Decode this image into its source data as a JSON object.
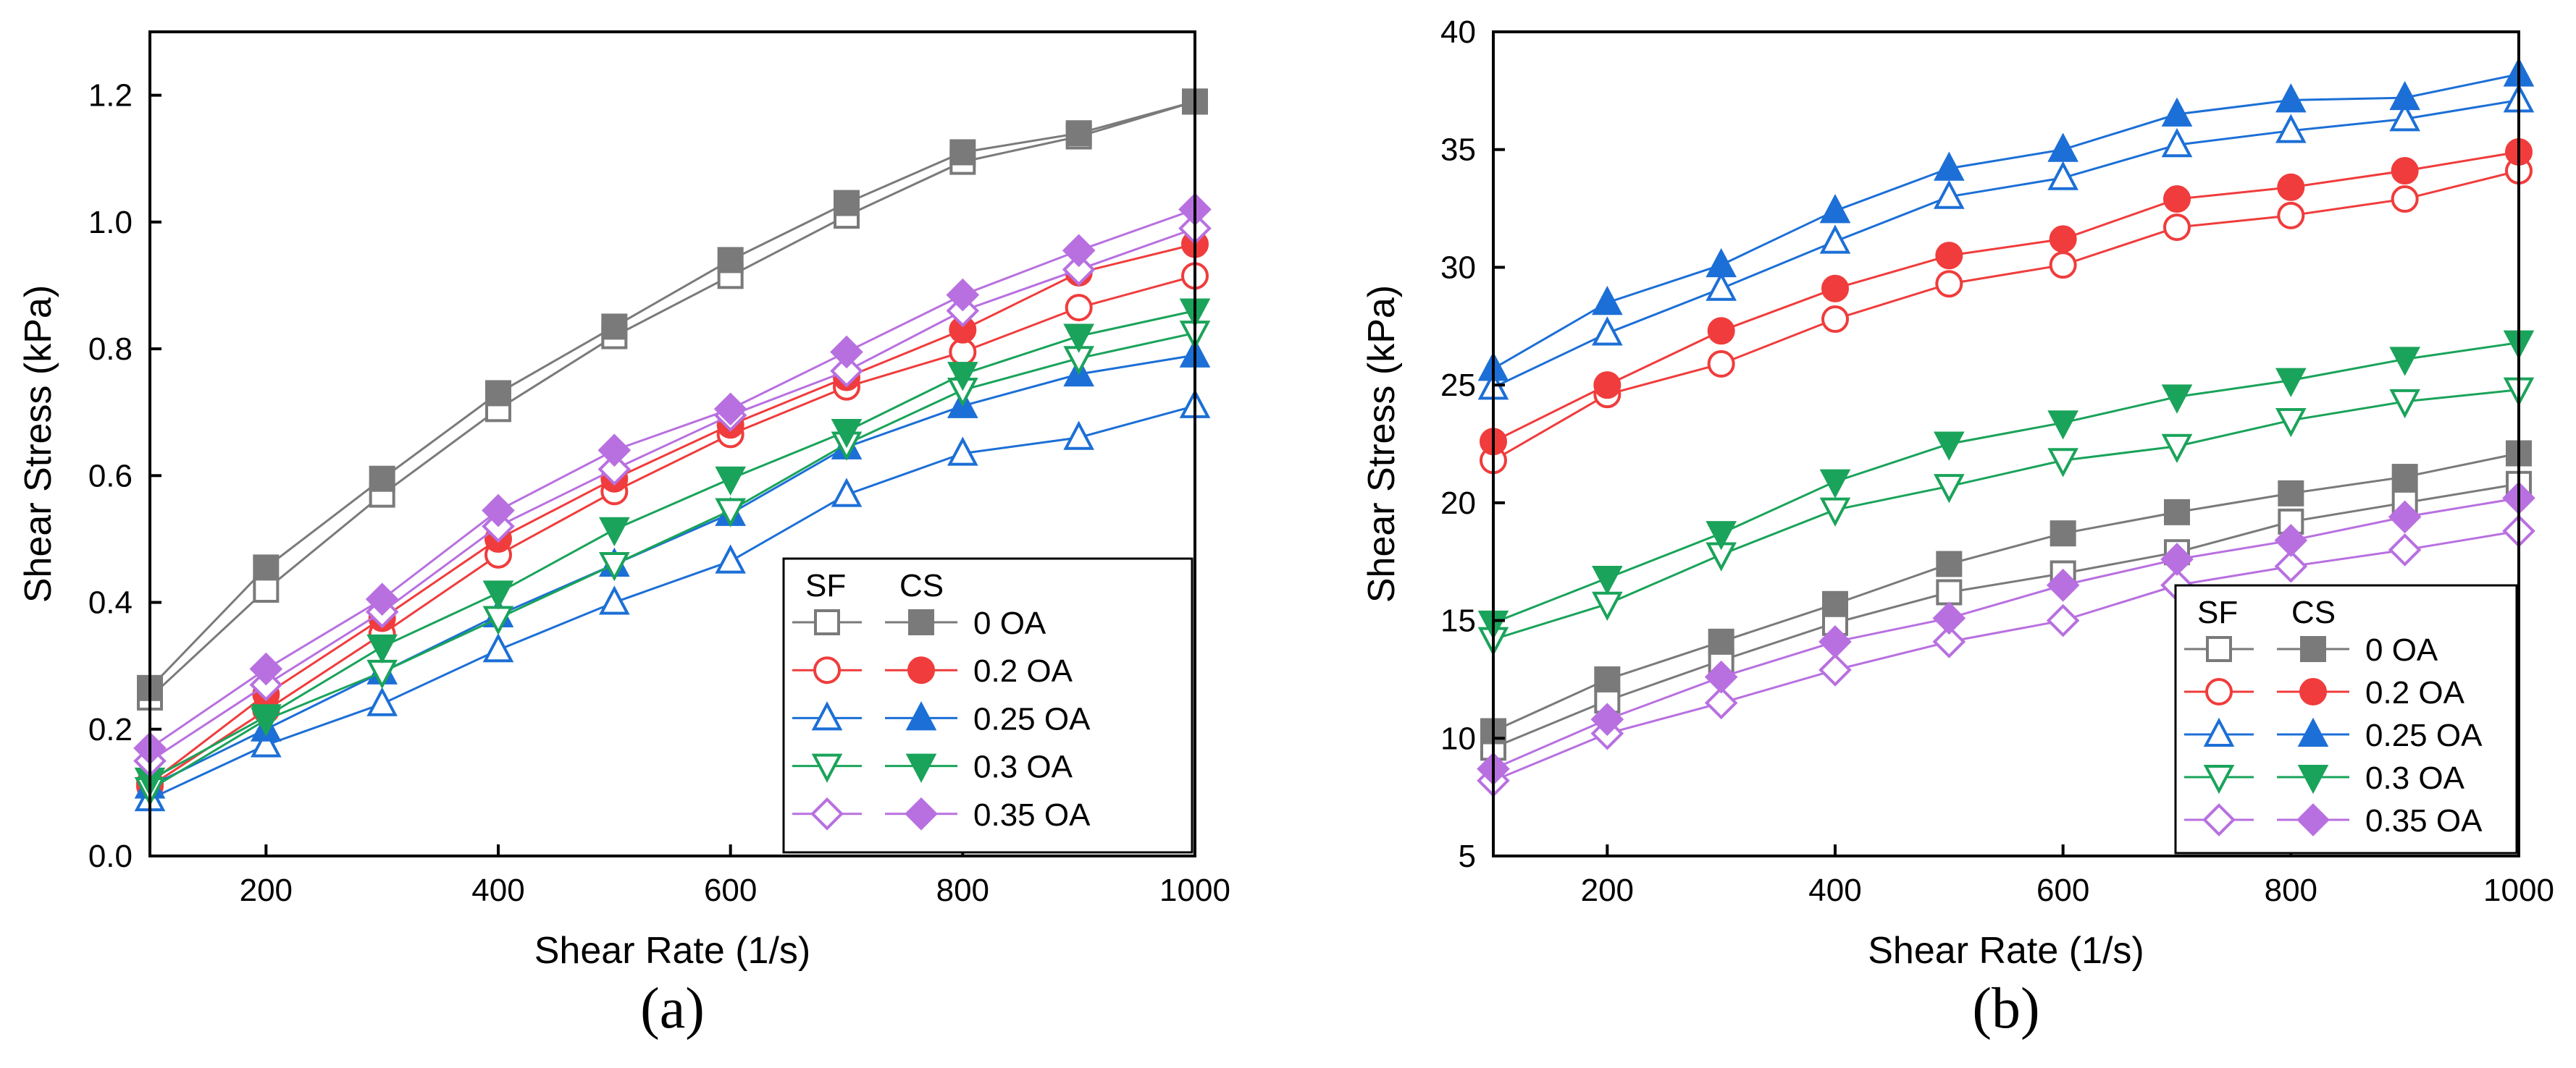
{
  "chart_data": [
    {
      "type": "line",
      "panel_label": "(a)",
      "xlabel": "Shear Rate (1/s)",
      "ylabel": "Shear Stress (kPa)",
      "xlim": [
        100,
        1000
      ],
      "ylim": [
        0.0,
        1.3
      ],
      "xticks": [
        200,
        400,
        600,
        800,
        1000
      ],
      "yticks": [
        0.0,
        0.2,
        0.4,
        0.6,
        0.8,
        1.0,
        1.2
      ],
      "ytick_labels": [
        "0.0",
        "0.2",
        "0.4",
        "0.6",
        "0.8",
        "1.0",
        "1.2"
      ],
      "grid": false,
      "legend_position": "bottom-right",
      "legend_headers": [
        "SF",
        "CS"
      ],
      "x": [
        100,
        200,
        300,
        400,
        500,
        600,
        700,
        800,
        900,
        1000
      ],
      "series": [
        {
          "name": "0 OA",
          "color": "#7a7a7a",
          "marker": "square",
          "sf": [
            0.25,
            0.42,
            0.57,
            0.705,
            0.82,
            0.915,
            1.01,
            1.095,
            1.135,
            1.19
          ],
          "cs": [
            0.265,
            0.455,
            0.595,
            0.73,
            0.835,
            0.94,
            1.03,
            1.11,
            1.14,
            1.19
          ]
        },
        {
          "name": "0.2 OA",
          "color": "#f03c3c",
          "marker": "circle",
          "sf": [
            0.11,
            0.23,
            0.35,
            0.475,
            0.575,
            0.665,
            0.74,
            0.795,
            0.865,
            0.915
          ],
          "cs": [
            0.115,
            0.255,
            0.375,
            0.5,
            0.595,
            0.68,
            0.755,
            0.83,
            0.92,
            0.965
          ]
        },
        {
          "name": "0.25 OA",
          "color": "#1c6fd6",
          "marker": "triangle-up",
          "sf": [
            0.09,
            0.175,
            0.24,
            0.325,
            0.4,
            0.465,
            0.57,
            0.635,
            0.66,
            0.71
          ],
          "cs": [
            0.11,
            0.2,
            0.29,
            0.38,
            0.46,
            0.54,
            0.645,
            0.71,
            0.76,
            0.79
          ]
        },
        {
          "name": "0.3 OA",
          "color": "#1aa35a",
          "marker": "triangle-down",
          "sf": [
            0.105,
            0.215,
            0.29,
            0.375,
            0.46,
            0.545,
            0.65,
            0.735,
            0.785,
            0.825
          ],
          "cs": [
            0.12,
            0.22,
            0.33,
            0.415,
            0.515,
            0.595,
            0.67,
            0.76,
            0.82,
            0.86
          ]
        },
        {
          "name": "0.35 OA",
          "color": "#b870e0",
          "marker": "diamond",
          "sf": [
            0.15,
            0.27,
            0.385,
            0.52,
            0.61,
            0.695,
            0.765,
            0.86,
            0.925,
            0.99
          ],
          "cs": [
            0.17,
            0.295,
            0.405,
            0.545,
            0.64,
            0.705,
            0.795,
            0.885,
            0.955,
            1.02
          ]
        }
      ]
    },
    {
      "type": "line",
      "panel_label": "(b)",
      "xlabel": "Shear Rate (1/s)",
      "ylabel": "Shear Stress (kPa)",
      "xlim": [
        100,
        1000
      ],
      "ylim": [
        5,
        40
      ],
      "xticks": [
        200,
        400,
        600,
        800,
        1000
      ],
      "yticks": [
        5,
        10,
        15,
        20,
        25,
        30,
        35,
        40
      ],
      "ytick_labels": [
        "5",
        "10",
        "15",
        "20",
        "25",
        "30",
        "35",
        "40"
      ],
      "grid": false,
      "legend_position": "bottom-right",
      "legend_headers": [
        "SF",
        "CS"
      ],
      "x": [
        100,
        200,
        300,
        400,
        500,
        600,
        700,
        800,
        900,
        1000
      ],
      "series": [
        {
          "name": "0 OA",
          "color": "#7a7a7a",
          "marker": "square",
          "sf": [
            9.6,
            11.6,
            13.3,
            14.9,
            16.2,
            17.0,
            17.9,
            19.2,
            20.0,
            20.8
          ],
          "cs": [
            10.3,
            12.5,
            14.1,
            15.7,
            17.4,
            18.7,
            19.6,
            20.4,
            21.1,
            22.1
          ]
        },
        {
          "name": "0.2 OA",
          "color": "#f03c3c",
          "marker": "circle",
          "sf": [
            21.8,
            24.6,
            25.9,
            27.8,
            29.3,
            30.1,
            31.7,
            32.2,
            32.9,
            34.1
          ],
          "cs": [
            22.6,
            25.0,
            27.3,
            29.1,
            30.5,
            31.2,
            32.9,
            33.4,
            34.1,
            34.9
          ]
        },
        {
          "name": "0.25 OA",
          "color": "#1c6fd6",
          "marker": "triangle-up",
          "sf": [
            24.9,
            27.2,
            29.1,
            31.1,
            33.0,
            33.8,
            35.2,
            35.8,
            36.3,
            37.1
          ],
          "cs": [
            25.7,
            28.5,
            30.1,
            32.4,
            34.2,
            35.0,
            36.5,
            37.1,
            37.2,
            38.2
          ]
        },
        {
          "name": "0.3 OA",
          "color": "#1aa35a",
          "marker": "triangle-down",
          "sf": [
            14.2,
            15.7,
            17.8,
            19.7,
            20.7,
            21.8,
            22.4,
            23.5,
            24.3,
            24.8
          ],
          "cs": [
            14.9,
            16.8,
            18.7,
            20.9,
            22.5,
            23.4,
            24.5,
            25.2,
            26.1,
            26.8
          ]
        },
        {
          "name": "0.35 OA",
          "color": "#b870e0",
          "marker": "diamond",
          "sf": [
            8.2,
            10.2,
            11.5,
            12.9,
            14.1,
            15.0,
            16.5,
            17.3,
            18.0,
            18.8
          ],
          "cs": [
            8.7,
            10.8,
            12.6,
            14.1,
            15.1,
            16.5,
            17.6,
            18.4,
            19.4,
            20.2
          ]
        }
      ]
    }
  ]
}
